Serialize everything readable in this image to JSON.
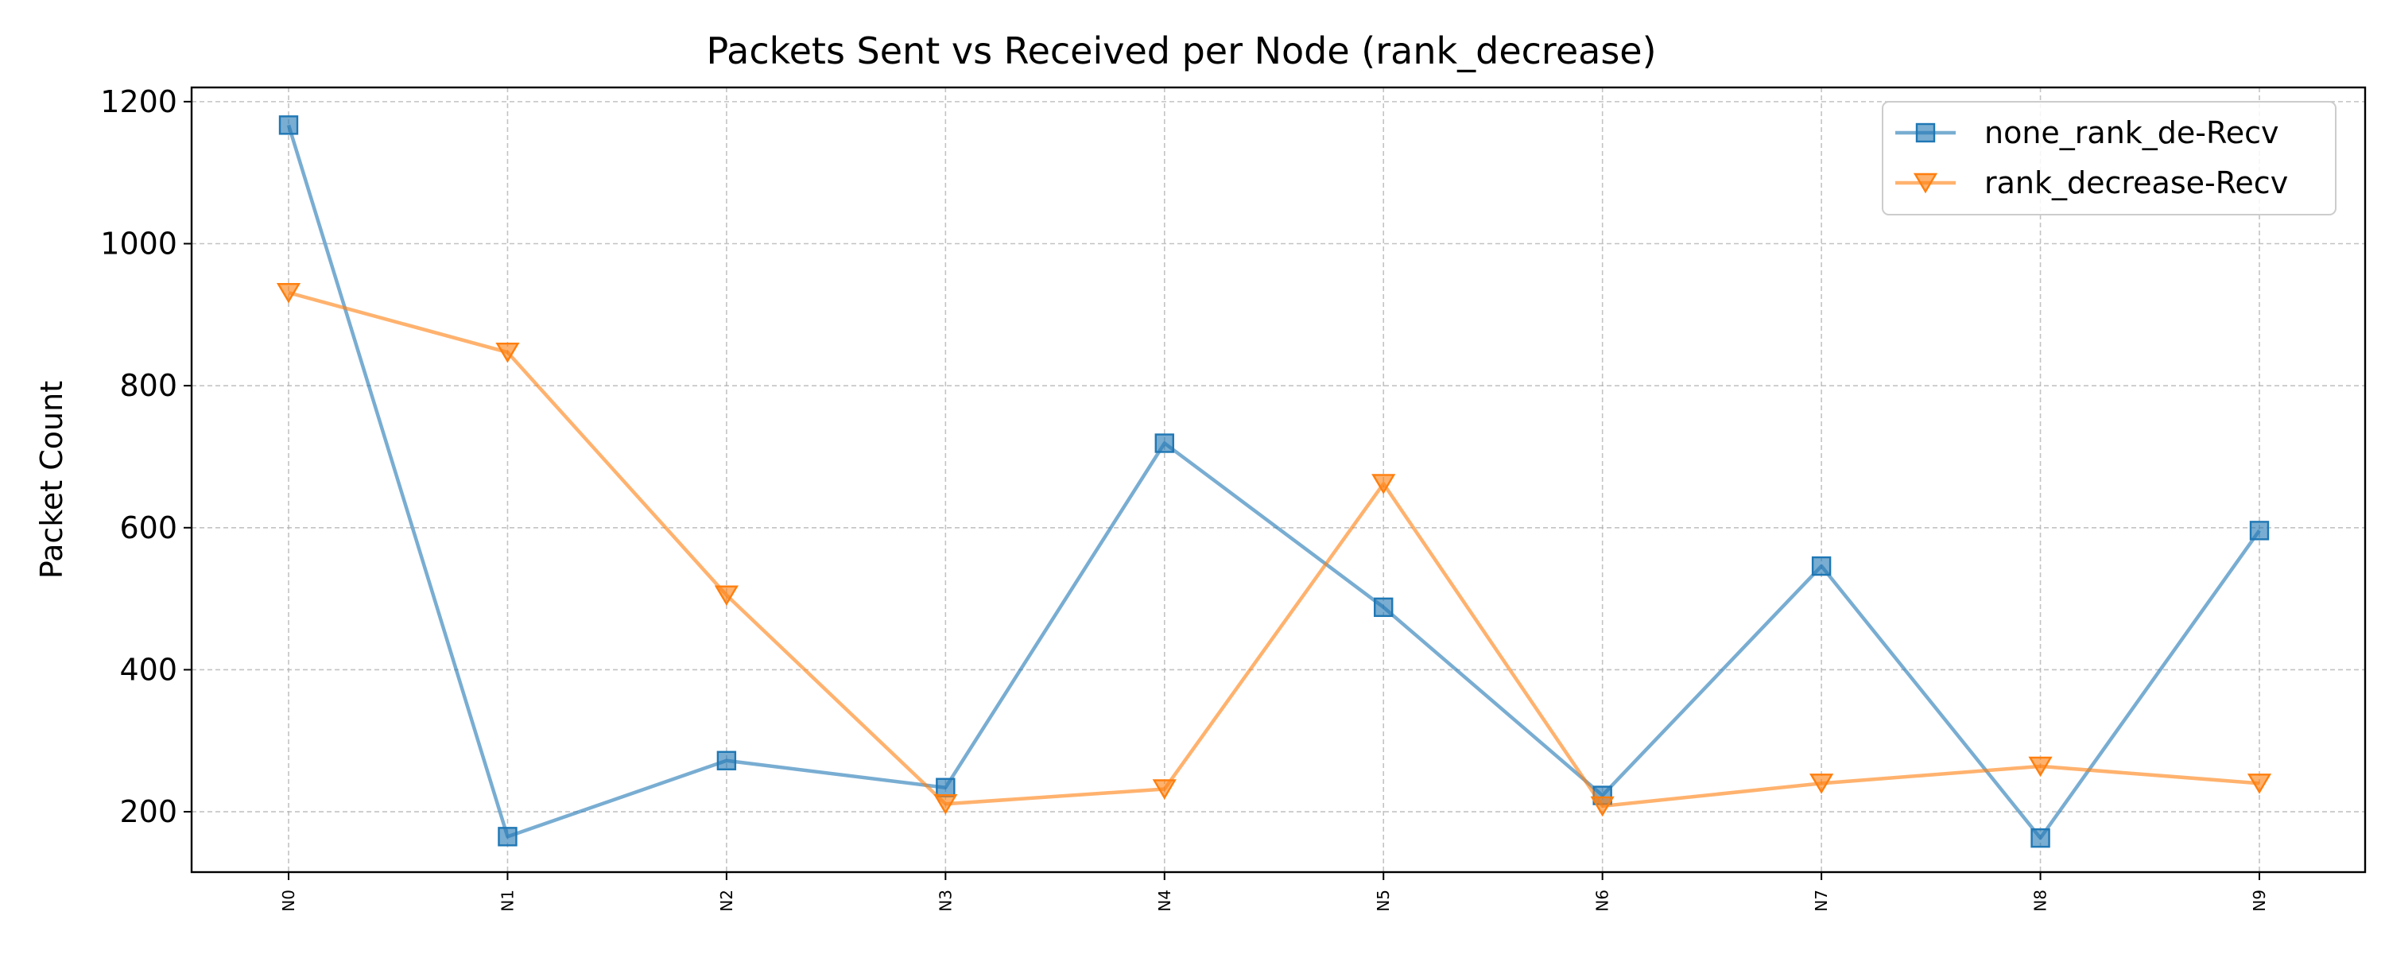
{
  "chart_data": {
    "type": "line",
    "title": "Packets Sent vs Received per Node (rank_decrease)",
    "xlabel": "",
    "ylabel": "Packet Count",
    "categories": [
      "N0",
      "N1",
      "N2",
      "N3",
      "N4",
      "N5",
      "N6",
      "N7",
      "N8",
      "N9"
    ],
    "ylim": [
      115,
      1220
    ],
    "yticks": [
      200,
      400,
      600,
      800,
      1000,
      1200
    ],
    "grid": true,
    "legend_position": "upper right",
    "series": [
      {
        "name": "none_rank_de-Recv",
        "color": "#1f77b4",
        "marker": "square",
        "values": [
          1167,
          165,
          272,
          234,
          719,
          488,
          223,
          546,
          163,
          596
        ]
      },
      {
        "name": "rank_decrease-Recv",
        "color": "#ff7f0e",
        "marker": "triangle-down",
        "values": [
          931,
          847,
          505,
          211,
          232,
          662,
          208,
          240,
          264,
          240
        ]
      }
    ]
  }
}
